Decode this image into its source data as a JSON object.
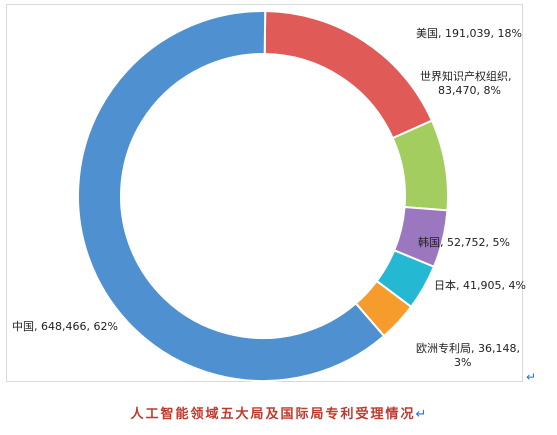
{
  "chart_data": {
    "type": "pie",
    "title": "",
    "slices": [
      {
        "label": "美国",
        "value": 191039,
        "percent": 18,
        "label_lines": [
          "美国, 191,039, 18%"
        ],
        "color": "#e05a57"
      },
      {
        "label": "世界知识产权组织",
        "value": 83470,
        "percent": 8,
        "label_lines": [
          "世界知识产权组织,",
          "83,470, 8%"
        ],
        "color": "#a3cd5f"
      },
      {
        "label": "韩国",
        "value": 52752,
        "percent": 5,
        "label_lines": [
          "韩国, 52,752, 5%"
        ],
        "color": "#9b77bf"
      },
      {
        "label": "日本",
        "value": 41905,
        "percent": 4,
        "label_lines": [
          "日本, 41,905, 4%"
        ],
        "color": "#25b8d3"
      },
      {
        "label": "欧洲专利局",
        "value": 36148,
        "percent": 3,
        "label_lines": [
          "欧洲专利局, 36,148,",
          "3%"
        ],
        "color": "#f59c2c"
      },
      {
        "label": "中国",
        "value": 648466,
        "percent": 62,
        "label_lines": [
          "中国, 648,466, 62%"
        ],
        "color": "#4f91d0"
      }
    ],
    "donut": true,
    "legend": "none"
  },
  "caption": "人工智能领域五大局及国际局专利受理情况",
  "colors": {
    "caption": "#c0392b",
    "frame_border": "#d9d9d9",
    "return_mark": "#2f6fd6"
  }
}
